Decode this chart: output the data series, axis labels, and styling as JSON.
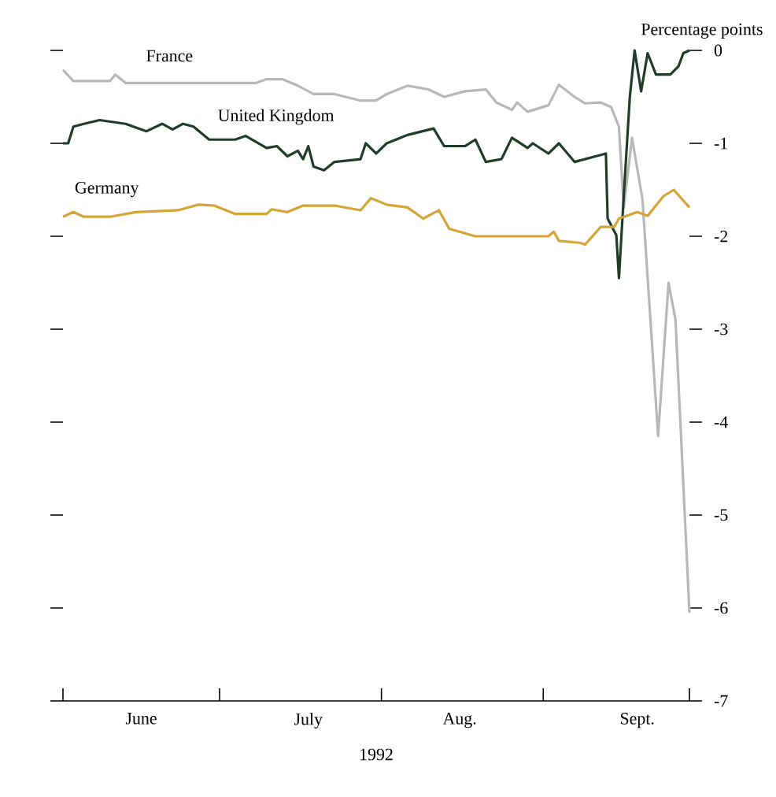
{
  "chart_data": {
    "type": "line",
    "ylabel": "Percentage points",
    "xlabel": "1992",
    "xlim": [
      "1992-06-01",
      "1992-09-29"
    ],
    "xticks": [
      {
        "value": "1992-06-01",
        "label": null
      },
      {
        "value": "1992-06-16",
        "label": "June"
      },
      {
        "value": "1992-07-01",
        "label": null
      },
      {
        "value": "1992-07-18",
        "label": "July"
      },
      {
        "value": "1992-08-01",
        "label": null
      },
      {
        "value": "1992-08-16",
        "label": "Aug."
      },
      {
        "value": "1992-09-01",
        "label": null
      },
      {
        "value": "1992-09-19",
        "label": "Sept."
      },
      {
        "value": "1992-09-29",
        "label": null
      }
    ],
    "ylim": [
      -7,
      0
    ],
    "yticks": [
      0,
      -1,
      -2,
      -3,
      -4,
      -5,
      -6,
      -7
    ],
    "series": [
      {
        "name": "France",
        "color": "#b8b8b8",
        "x": [
          "1992-06-01",
          "1992-06-03",
          "1992-06-10",
          "1992-06-11",
          "1992-06-13",
          "1992-06-20",
          "1992-07-08",
          "1992-07-10",
          "1992-07-13",
          "1992-07-16",
          "1992-07-19",
          "1992-07-23",
          "1992-07-28",
          "1992-07-31",
          "1992-08-02",
          "1992-08-06",
          "1992-08-10",
          "1992-08-13",
          "1992-08-17",
          "1992-08-21",
          "1992-08-23",
          "1992-08-26",
          "1992-08-27",
          "1992-08-29",
          "1992-09-02",
          "1992-09-04",
          "1992-09-07",
          "1992-09-09",
          "1992-09-12",
          "1992-09-14",
          "1992-09-15T12:00",
          "1992-09-16T10:00",
          "1992-09-18",
          "1992-09-20",
          "1992-09-23",
          "1992-09-25",
          "1992-09-26T08:00",
          "1992-09-29"
        ],
        "values": [
          -0.21,
          -0.33,
          -0.33,
          -0.26,
          -0.35,
          -0.35,
          -0.35,
          -0.31,
          -0.31,
          -0.38,
          -0.47,
          -0.47,
          -0.54,
          -0.54,
          -0.47,
          -0.38,
          -0.42,
          -0.5,
          -0.44,
          -0.42,
          -0.56,
          -0.64,
          -0.56,
          -0.66,
          -0.59,
          -0.37,
          -0.5,
          -0.57,
          -0.56,
          -0.61,
          -0.82,
          -1.7,
          -0.94,
          -1.6,
          -4.15,
          -2.5,
          -2.9,
          -6.05
        ]
      },
      {
        "name": "United Kingdom",
        "color": "#1f3d2a",
        "x": [
          "1992-06-01",
          "1992-06-02",
          "1992-06-03",
          "1992-06-05",
          "1992-06-08",
          "1992-06-13",
          "1992-06-17",
          "1992-06-20",
          "1992-06-22",
          "1992-06-24",
          "1992-06-26",
          "1992-06-29",
          "1992-07-04",
          "1992-07-06",
          "1992-07-10",
          "1992-07-12",
          "1992-07-14",
          "1992-07-16",
          "1992-07-17",
          "1992-07-18",
          "1992-07-19",
          "1992-07-21",
          "1992-07-23",
          "1992-07-28",
          "1992-07-29",
          "1992-07-31",
          "1992-08-02",
          "1992-08-06",
          "1992-08-11",
          "1992-08-13",
          "1992-08-17",
          "1992-08-19",
          "1992-08-21",
          "1992-08-24",
          "1992-08-26",
          "1992-08-29",
          "1992-08-30",
          "1992-09-02",
          "1992-09-04",
          "1992-09-07",
          "1992-09-11",
          "1992-09-13",
          "1992-09-13T08:00",
          "1992-09-15",
          "1992-09-15T12:00",
          "1992-09-16T10:00",
          "1992-09-17T14:00",
          "1992-09-18T12:00",
          "1992-09-19T18:00",
          "1992-09-21",
          "1992-09-22T14:00",
          "1992-09-25T08:00",
          "1992-09-26T22:00",
          "1992-09-27T20:00",
          "1992-09-29"
        ],
        "values": [
          -1.0,
          -1.0,
          -0.82,
          -0.79,
          -0.75,
          -0.79,
          -0.87,
          -0.79,
          -0.85,
          -0.79,
          -0.82,
          -0.96,
          -0.96,
          -0.92,
          -1.05,
          -1.03,
          -1.14,
          -1.08,
          -1.17,
          -1.03,
          -1.25,
          -1.29,
          -1.2,
          -1.17,
          -1.0,
          -1.11,
          -1.0,
          -0.91,
          -0.84,
          -1.03,
          -1.03,
          -0.96,
          -1.2,
          -1.17,
          -0.94,
          -1.05,
          -1.0,
          -1.11,
          -1.0,
          -1.2,
          -1.14,
          -1.11,
          -1.81,
          -1.99,
          -2.45,
          -1.57,
          -0.5,
          0,
          -0.44,
          -0.03,
          -0.26,
          -0.26,
          -0.17,
          -0.03,
          0.0
        ]
      },
      {
        "name": "Germany",
        "color": "#d4a437",
        "x": [
          "1992-06-01",
          "1992-06-03",
          "1992-06-05",
          "1992-06-10",
          "1992-06-15",
          "1992-06-23",
          "1992-06-27",
          "1992-06-30",
          "1992-07-04",
          "1992-07-10",
          "1992-07-11",
          "1992-07-14",
          "1992-07-17",
          "1992-07-23",
          "1992-07-28",
          "1992-07-30",
          "1992-08-02",
          "1992-08-06",
          "1992-08-09",
          "1992-08-12",
          "1992-08-14",
          "1992-08-19",
          "1992-09-02",
          "1992-09-03",
          "1992-09-04",
          "1992-09-08",
          "1992-09-09",
          "1992-09-12",
          "1992-09-14T14:00",
          "1992-09-15T12:00",
          "1992-09-19",
          "1992-09-21",
          "1992-09-24",
          "1992-09-26",
          "1992-09-29"
        ],
        "values": [
          -1.79,
          -1.74,
          -1.79,
          -1.79,
          -1.74,
          -1.72,
          -1.66,
          -1.67,
          -1.76,
          -1.76,
          -1.71,
          -1.74,
          -1.67,
          -1.67,
          -1.72,
          -1.59,
          -1.66,
          -1.69,
          -1.81,
          -1.72,
          -1.92,
          -2.0,
          -2.0,
          -1.95,
          -2.05,
          -2.07,
          -2.09,
          -1.9,
          -1.9,
          -1.81,
          -1.74,
          -1.78,
          -1.57,
          -1.5,
          -1.69
        ]
      }
    ]
  }
}
